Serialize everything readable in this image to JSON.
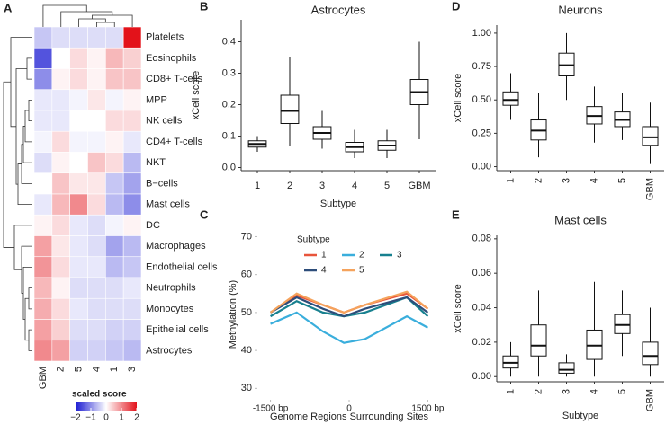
{
  "chart_data": [
    {
      "type": "heatmap",
      "letter": "A",
      "columns": [
        "GBM",
        "2",
        "5",
        "4",
        "1",
        "3"
      ],
      "rows": [
        "Platelets",
        "Eosinophils",
        "CD8+ T-cells",
        "MPP",
        "NK cells",
        "CD4+ T-cells",
        "NKT",
        "B−cells",
        "Mast cells",
        "DC",
        "Macrophages",
        "Endothelial cells",
        "Neutrophils",
        "Monocytes",
        "Epithelial cells",
        "Astrocytes"
      ],
      "values": [
        [
          -0.5,
          -0.3,
          -0.3,
          -0.3,
          -0.3,
          2.0
        ],
        [
          -1.5,
          0.0,
          0.3,
          0.1,
          0.6,
          0.4
        ],
        [
          -1.0,
          0.1,
          0.3,
          0.1,
          0.5,
          0.5
        ],
        [
          -0.2,
          -0.2,
          -0.1,
          0.2,
          -0.1,
          0.1
        ],
        [
          -0.2,
          -0.2,
          0.0,
          0.0,
          0.3,
          0.3
        ],
        [
          -0.1,
          0.3,
          -0.1,
          -0.1,
          0.1,
          -0.2
        ],
        [
          -0.3,
          0.1,
          0.0,
          0.5,
          0.3,
          -0.6
        ],
        [
          0.0,
          0.5,
          0.2,
          0.2,
          -0.5,
          -0.8
        ],
        [
          -0.2,
          0.6,
          1.0,
          0.3,
          -0.6,
          -1.0
        ],
        [
          0.1,
          0.3,
          -0.2,
          -0.3,
          -0.1,
          0.1
        ],
        [
          0.8,
          0.2,
          -0.2,
          -0.3,
          -0.8,
          -0.6
        ],
        [
          0.9,
          0.3,
          -0.2,
          -0.2,
          -0.6,
          -0.5
        ],
        [
          0.6,
          0.1,
          -0.3,
          -0.3,
          -0.3,
          -0.2
        ],
        [
          0.7,
          0.3,
          -0.2,
          -0.3,
          -0.3,
          -0.3
        ],
        [
          0.8,
          0.4,
          -0.3,
          -0.3,
          -0.4,
          -0.4
        ],
        [
          1.0,
          0.8,
          -0.4,
          -0.4,
          -0.5,
          -0.6
        ]
      ],
      "colorbar": {
        "title": "scaled score",
        "lim": [
          -2,
          2
        ],
        "ticks": [
          {
            "value": -2,
            "label": "−2"
          },
          {
            "value": -1,
            "label": "−1"
          },
          0,
          1,
          2
        ],
        "colors": [
          "#1a1ad2",
          "#ffffff",
          "#e3121a"
        ]
      }
    },
    {
      "type": "box",
      "letter": "B",
      "title": "Astrocytes",
      "ylabel": "xCell score",
      "xlabel": "Subtype",
      "categories": [
        "1",
        "2",
        "3",
        "4",
        "5",
        "GBM"
      ],
      "whisker_low": [
        0.05,
        0.07,
        0.06,
        0.03,
        0.03,
        0.09
      ],
      "q1": [
        0.065,
        0.14,
        0.09,
        0.05,
        0.055,
        0.2
      ],
      "median": [
        0.075,
        0.18,
        0.11,
        0.065,
        0.07,
        0.24
      ],
      "q3": [
        0.085,
        0.23,
        0.13,
        0.08,
        0.085,
        0.28
      ],
      "whisker_high": [
        0.1,
        0.35,
        0.18,
        0.12,
        0.12,
        0.4
      ],
      "ylim": [
        -0.01,
        0.47
      ],
      "yticks": [
        {
          "value": 0,
          "label": "0.0"
        },
        0.1,
        0.2,
        0.3,
        0.4
      ]
    },
    {
      "type": "line",
      "letter": "C",
      "legend_title": "Subtype",
      "ylabel": "Methylation (%)",
      "xlabel": "Genome Regions Surrounding Sites",
      "x": [
        -1500,
        -1000,
        -500,
        -100,
        300,
        1100,
        1500
      ],
      "series": [
        {
          "name": "1",
          "color": "#e8553b",
          "values": [
            50,
            54.5,
            52,
            50,
            52,
            55,
            51
          ]
        },
        {
          "name": "2",
          "color": "#3aaedc",
          "values": [
            47,
            50,
            45,
            42,
            43,
            49,
            46
          ]
        },
        {
          "name": "3",
          "color": "#17808f",
          "values": [
            49,
            53,
            50,
            49,
            50,
            54,
            49
          ]
        },
        {
          "name": "4",
          "color": "#2d4d7a",
          "values": [
            50,
            54,
            51,
            49,
            51,
            54,
            50
          ]
        },
        {
          "name": "5",
          "color": "#f5a35c",
          "values": [
            50,
            55,
            52,
            50,
            52,
            55.5,
            51
          ]
        }
      ],
      "xlim": [
        -1750,
        1750
      ],
      "xticks": [
        {
          "value": -1500,
          "label": "-1500 bp"
        },
        0,
        {
          "value": 1500,
          "label": "1500 bp"
        }
      ],
      "ylim": [
        27,
        72
      ],
      "yticks": [
        30,
        40,
        50,
        60,
        70
      ]
    },
    {
      "type": "box",
      "letter": "D",
      "title": "Neurons",
      "ylabel": "xCell score",
      "categories": [
        "1",
        "2",
        "3",
        "4",
        "5",
        "GBM"
      ],
      "whisker_low": [
        0.35,
        0.07,
        0.5,
        0.18,
        0.2,
        0.02
      ],
      "q1": [
        0.46,
        0.2,
        0.68,
        0.32,
        0.3,
        0.16
      ],
      "median": [
        0.5,
        0.27,
        0.76,
        0.38,
        0.35,
        0.22
      ],
      "q3": [
        0.56,
        0.35,
        0.85,
        0.45,
        0.41,
        0.3
      ],
      "whisker_high": [
        0.7,
        0.55,
        1.0,
        0.6,
        0.55,
        0.48
      ],
      "ylim": [
        -0.03,
        1.06
      ],
      "yticks": [
        {
          "value": 0,
          "label": "0.00"
        },
        0.25,
        {
          "value": 0.5,
          "label": "0.50"
        },
        0.75,
        {
          "value": 1,
          "label": "1.00"
        }
      ]
    },
    {
      "type": "box",
      "letter": "E",
      "title": "Mast cells",
      "ylabel": "xCell score",
      "xlabel": "Subtype",
      "categories": [
        "1",
        "2",
        "3",
        "4",
        "5",
        "GBM"
      ],
      "whisker_low": [
        0,
        0,
        0,
        0,
        0.012,
        0
      ],
      "q1": [
        0.005,
        0.012,
        0.002,
        0.01,
        0.025,
        0.007
      ],
      "median": [
        0.008,
        0.018,
        0.004,
        0.018,
        0.03,
        0.012
      ],
      "q3": [
        0.012,
        0.03,
        0.008,
        0.027,
        0.036,
        0.02
      ],
      "whisker_high": [
        0.02,
        0.05,
        0.013,
        0.055,
        0.05,
        0.04
      ],
      "ylim": [
        -0.003,
        0.082
      ],
      "yticks": [
        {
          "value": 0,
          "label": "0.00"
        },
        0.02,
        0.04,
        0.06,
        0.08
      ]
    }
  ]
}
